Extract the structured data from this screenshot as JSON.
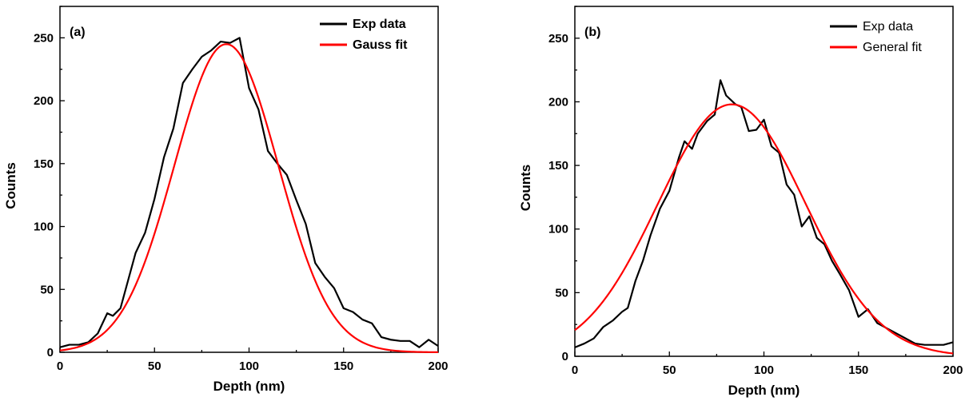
{
  "chart_data": [
    {
      "type": "line",
      "panel_label": "(a)",
      "xlabel": "Depth (nm)",
      "ylabel": "Counts",
      "xlim": [
        0,
        200
      ],
      "ylim": [
        0,
        275
      ],
      "xticks": [
        0,
        50,
        100,
        150,
        200
      ],
      "yticks": [
        0,
        50,
        100,
        150,
        200,
        250
      ],
      "grid": false,
      "legend_position": "top-right",
      "series": [
        {
          "name": "Exp data",
          "color": "#000000",
          "style": "line",
          "x": [
            0,
            5,
            10,
            15,
            20,
            25,
            28,
            32,
            36,
            40,
            45,
            50,
            55,
            60,
            65,
            70,
            75,
            80,
            85,
            90,
            95,
            100,
            105,
            110,
            115,
            120,
            125,
            130,
            135,
            140,
            145,
            150,
            155,
            160,
            165,
            170,
            175,
            180,
            185,
            190,
            195,
            200
          ],
          "y": [
            4,
            6,
            6,
            8,
            15,
            31,
            29,
            35,
            57,
            79,
            95,
            122,
            155,
            178,
            214,
            225,
            235,
            240,
            247,
            246,
            250,
            210,
            193,
            160,
            150,
            141,
            121,
            102,
            71,
            60,
            51,
            35,
            32,
            26,
            23,
            12,
            10,
            9,
            9,
            4,
            10,
            5
          ]
        },
        {
          "name": "Gauss fit",
          "color": "#ff0000",
          "style": "curve",
          "model": "gauss",
          "params": {
            "amplitude": 245,
            "center": 88,
            "sigma": 27.5
          }
        }
      ]
    },
    {
      "type": "line",
      "panel_label": "(b)",
      "xlabel": "Depth (nm)",
      "ylabel": "Counts",
      "xlim": [
        0,
        200
      ],
      "ylim": [
        0,
        275
      ],
      "xticks": [
        0,
        50,
        100,
        150,
        200
      ],
      "yticks": [
        0,
        50,
        100,
        150,
        200,
        250
      ],
      "grid": false,
      "legend_position": "top-right",
      "series": [
        {
          "name": "Exp data",
          "color": "#000000",
          "style": "line",
          "x": [
            0,
            5,
            10,
            15,
            20,
            25,
            28,
            32,
            36,
            40,
            45,
            50,
            55,
            58,
            62,
            65,
            70,
            74,
            77,
            80,
            85,
            88,
            92,
            96,
            100,
            104,
            108,
            112,
            116,
            120,
            124,
            128,
            132,
            136,
            140,
            145,
            150,
            155,
            160,
            165,
            170,
            175,
            180,
            185,
            190,
            195,
            200
          ],
          "y": [
            7,
            10,
            14,
            23,
            28,
            35,
            38,
            59,
            75,
            95,
            116,
            130,
            156,
            169,
            163,
            175,
            185,
            190,
            217,
            205,
            198,
            196,
            177,
            178,
            186,
            165,
            160,
            135,
            127,
            102,
            110,
            93,
            88,
            75,
            65,
            52,
            31,
            37,
            26,
            22,
            18,
            14,
            10,
            9,
            9,
            9,
            11
          ]
        },
        {
          "name": "General fit",
          "color": "#ff0000",
          "style": "curve",
          "model": "gauss",
          "params": {
            "amplitude": 198,
            "center": 83,
            "sigma": 39
          }
        }
      ]
    }
  ]
}
